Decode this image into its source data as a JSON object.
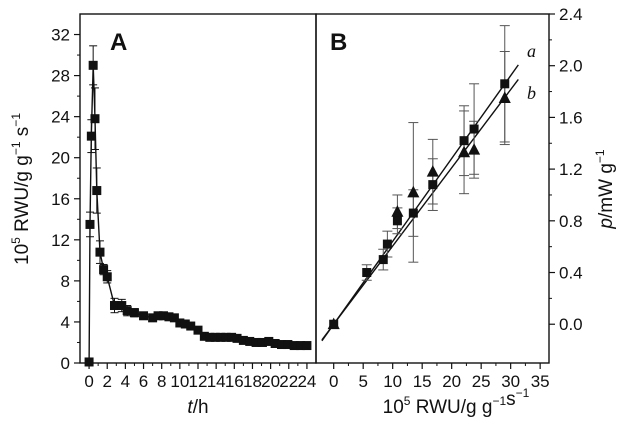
{
  "chart_data": [
    {
      "type": "line",
      "panel_label": "A",
      "xlabel": "t/h",
      "ylabel": "10^5 RWU/g g^-1 s^-1",
      "xlim": [
        -1,
        25
      ],
      "ylim": [
        0,
        34
      ],
      "xticks": [
        "0",
        "2",
        "4",
        "6",
        "8",
        "10",
        "12",
        "14",
        "16",
        "18",
        "20",
        "22",
        "24"
      ],
      "yticks": [
        "0",
        "4",
        "8",
        "12",
        "16",
        "20",
        "24",
        "28",
        "32"
      ],
      "series": [
        {
          "marker": "square",
          "x": [
            0.0,
            0.1,
            0.25,
            0.45,
            0.65,
            0.85,
            1.2,
            1.6,
            2.0,
            2.8,
            3.6,
            4.2,
            5.0,
            6.0,
            7.0,
            7.6,
            8.2,
            8.8,
            9.4,
            10.0,
            10.6,
            11.2,
            12.0,
            12.7,
            13.3,
            13.9,
            14.5,
            15.1,
            15.7,
            16.3,
            17.0,
            17.7,
            18.4,
            19.1,
            19.8,
            20.5,
            21.2,
            21.9,
            22.6,
            23.3,
            24.0
          ],
          "y": [
            0.1,
            13.5,
            22.1,
            29.0,
            23.8,
            16.8,
            10.8,
            9.1,
            8.4,
            5.6,
            5.6,
            5.1,
            4.9,
            4.6,
            4.4,
            4.6,
            4.6,
            4.5,
            4.4,
            3.9,
            3.8,
            3.6,
            3.2,
            2.6,
            2.5,
            2.5,
            2.5,
            2.5,
            2.5,
            2.4,
            2.2,
            2.1,
            2.0,
            2.0,
            2.1,
            1.9,
            1.8,
            1.8,
            1.7,
            1.7,
            1.7
          ],
          "error": [
            0,
            1.2,
            1.6,
            1.9,
            3.0,
            2.2,
            1.1,
            0.5,
            0.6,
            0.7,
            0.6,
            0.5,
            0.4,
            0.3,
            0.3,
            0.3,
            0.3,
            0.3,
            0.3,
            0.2,
            0.2,
            0.2,
            0.2,
            0.2,
            0.2,
            0.2,
            0.2,
            0.2,
            0.2,
            0.2,
            0.2,
            0.2,
            0.2,
            0.2,
            0.2,
            0.2,
            0.2,
            0.2,
            0.2,
            0.2,
            0.2
          ]
        }
      ]
    },
    {
      "type": "scatter",
      "panel_label": "B",
      "xlabel": "10^5 RWU/g g^-1 s^-1",
      "ylabel": "p/mW g^-1",
      "y_axis_position": "right",
      "xlim": [
        -3,
        36.5
      ],
      "ylim": [
        -0.3,
        2.4
      ],
      "xticks": [
        "0",
        "5",
        "10",
        "15",
        "20",
        "25",
        "30",
        "35"
      ],
      "yticks": [
        "0.0",
        "0.4",
        "0.8",
        "1.2",
        "1.6",
        "2.0",
        "2.4"
      ],
      "series": [
        {
          "name": "a",
          "marker": "square",
          "x": [
            0.0,
            5.6,
            8.4,
            9.1,
            10.8,
            13.5,
            16.8,
            22.1,
            23.8,
            29.0
          ],
          "y": [
            0.0,
            0.4,
            0.5,
            0.62,
            0.8,
            0.86,
            1.08,
            1.42,
            1.51,
            1.86
          ],
          "error": [
            0,
            0.06,
            0.08,
            0.1,
            0.1,
            0.18,
            0.2,
            0.27,
            0.35,
            0.45
          ],
          "fit_line": {
            "slope": 0.0641,
            "intercept": 0.0
          }
        },
        {
          "name": "b",
          "marker": "triangle",
          "x": [
            0.0,
            10.8,
            13.5,
            16.8,
            22.1,
            23.8,
            29.0
          ],
          "y": [
            0.0,
            0.87,
            1.02,
            1.18,
            1.33,
            1.35,
            1.75
          ],
          "error": [
            0,
            0.13,
            0.54,
            0.25,
            0.32,
            0.22,
            0.36
          ],
          "fit_line": {
            "slope": 0.0605,
            "intercept": 0.0
          }
        }
      ]
    }
  ]
}
